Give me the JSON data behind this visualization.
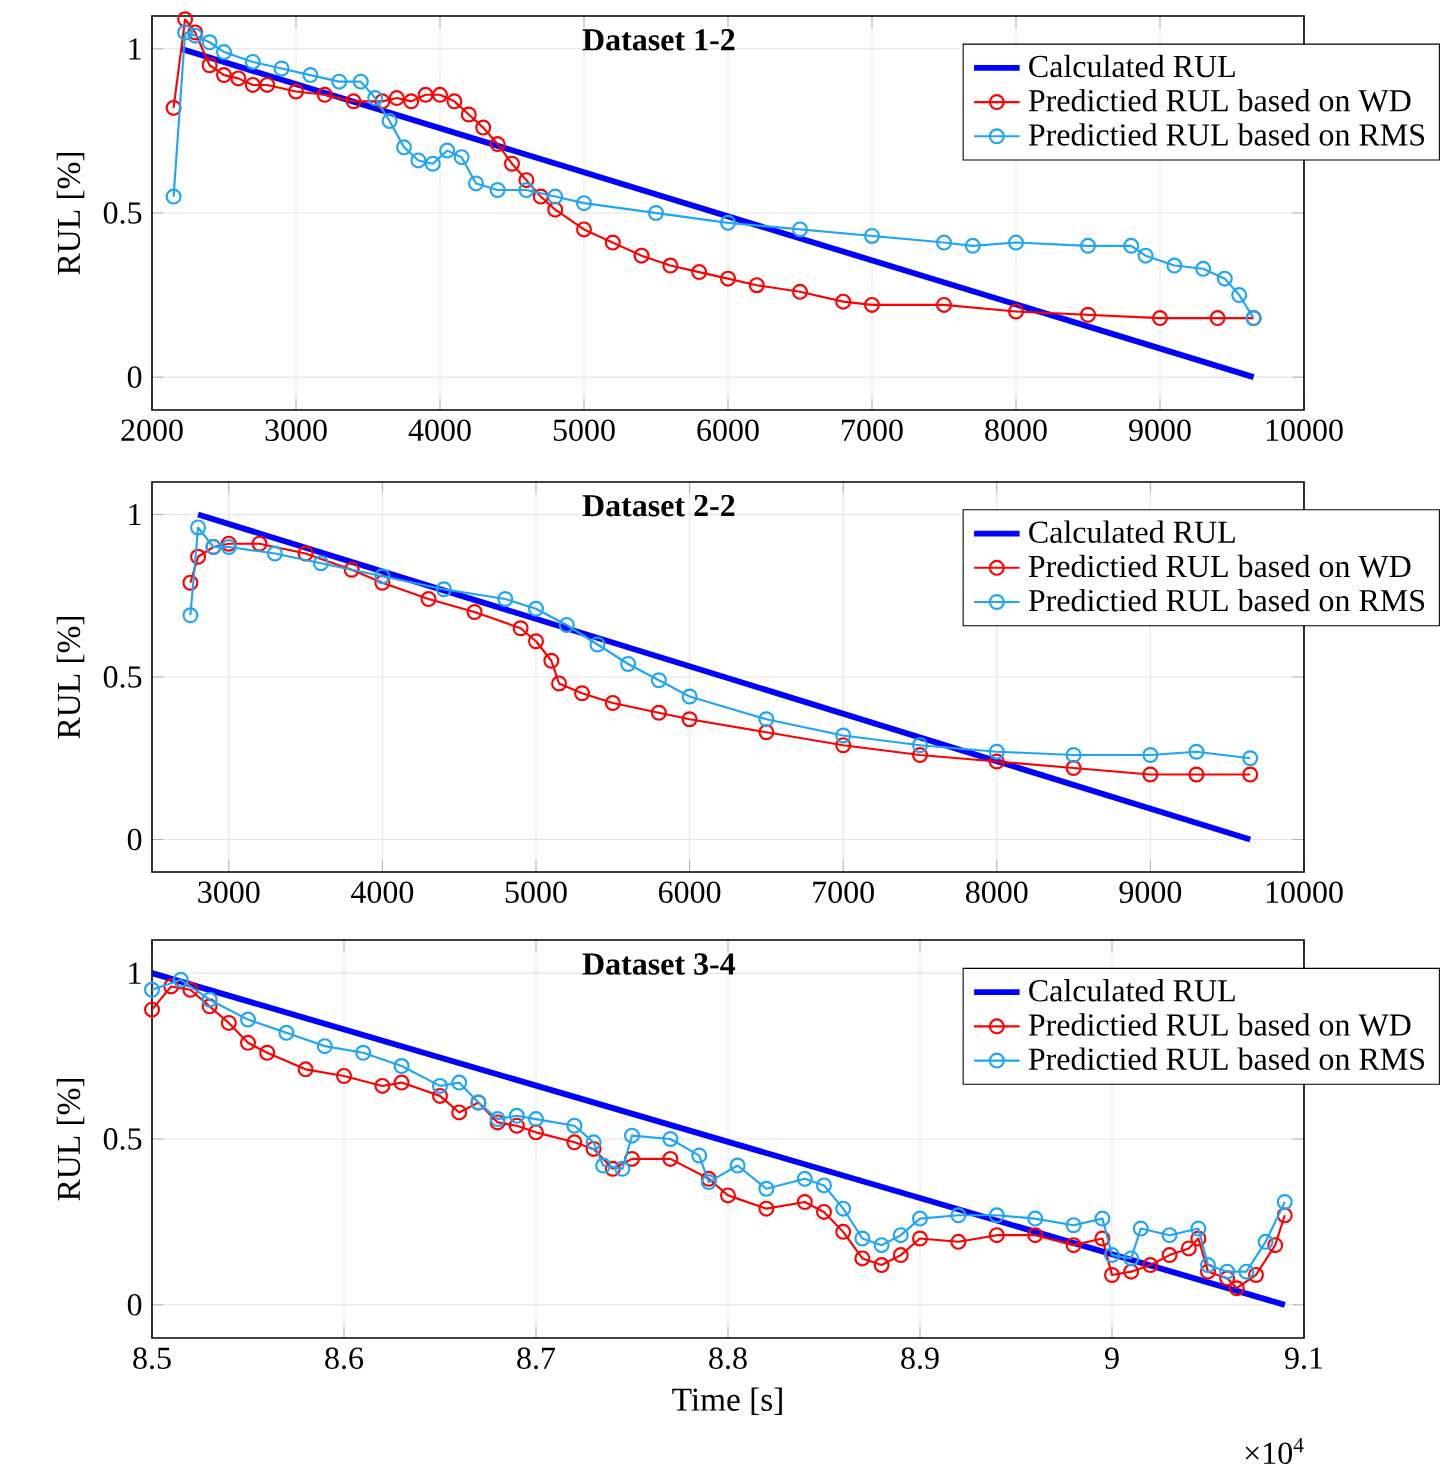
{
  "chart_data": [
    {
      "type": "line",
      "title": "**Dataset 1-2**",
      "ylabel": "RUL [%]",
      "xlim": [
        2000,
        10000
      ],
      "ylim": [
        -0.1,
        1.1
      ],
      "xticks": [
        2000,
        3000,
        4000,
        5000,
        6000,
        7000,
        8000,
        9000,
        10000
      ],
      "yticks": [
        0,
        0.5,
        1
      ],
      "grid": true,
      "legend": "top right",
      "series": [
        {
          "name": "Calculated RUL",
          "color": "#0000ff",
          "marker": "none",
          "x": [
            2200,
            9650
          ],
          "values": [
            1,
            0
          ]
        },
        {
          "name": "Predictied RUL based on WD",
          "color": "#ff0000",
          "marker": "circle",
          "x": [
            2150,
            2230,
            2300,
            2400,
            2500,
            2600,
            2700,
            2800,
            3000,
            3200,
            3400,
            3600,
            3700,
            3800,
            3900,
            4000,
            4100,
            4200,
            4300,
            4400,
            4500,
            4600,
            4700,
            4800,
            5000,
            5200,
            5400,
            5600,
            5800,
            6000,
            6200,
            6500,
            6800,
            7000,
            7500,
            8000,
            8500,
            9000,
            9400,
            9650
          ],
          "values": [
            0.82,
            1.09,
            1.05,
            0.95,
            0.92,
            0.91,
            0.89,
            0.89,
            0.87,
            0.86,
            0.84,
            0.84,
            0.85,
            0.84,
            0.86,
            0.86,
            0.84,
            0.8,
            0.76,
            0.71,
            0.65,
            0.6,
            0.55,
            0.51,
            0.45,
            0.41,
            0.37,
            0.34,
            0.32,
            0.3,
            0.28,
            0.26,
            0.23,
            0.22,
            0.22,
            0.2,
            0.19,
            0.18,
            0.18,
            0.18
          ]
        },
        {
          "name": "Predictied RUL based on RMS",
          "color": "#1ea5f5",
          "marker": "circle",
          "x": [
            2150,
            2230,
            2300,
            2400,
            2500,
            2700,
            2900,
            3100,
            3300,
            3450,
            3550,
            3650,
            3750,
            3850,
            3950,
            4050,
            4150,
            4250,
            4400,
            4600,
            4800,
            5000,
            5500,
            6000,
            6500,
            7000,
            7500,
            7700,
            8000,
            8500,
            8800,
            8900,
            9100,
            9300,
            9450,
            9550,
            9650
          ],
          "values": [
            0.55,
            1.05,
            1.04,
            1.02,
            0.99,
            0.96,
            0.94,
            0.92,
            0.9,
            0.9,
            0.85,
            0.78,
            0.7,
            0.66,
            0.65,
            0.69,
            0.67,
            0.59,
            0.57,
            0.57,
            0.55,
            0.53,
            0.5,
            0.47,
            0.45,
            0.43,
            0.41,
            0.4,
            0.41,
            0.4,
            0.4,
            0.37,
            0.34,
            0.33,
            0.3,
            0.25,
            0.18
          ]
        }
      ]
    },
    {
      "type": "line",
      "title": "**Dataset 2-2**",
      "ylabel": "RUL [%]",
      "xlim": [
        2500,
        10000
      ],
      "ylim": [
        -0.1,
        1.1
      ],
      "xticks": [
        3000,
        4000,
        5000,
        6000,
        7000,
        8000,
        9000,
        10000
      ],
      "yticks": [
        0,
        0.5,
        1
      ],
      "grid": true,
      "legend": "top right",
      "series": [
        {
          "name": "Calculated RUL",
          "color": "#0000ff",
          "marker": "none",
          "x": [
            2800,
            9650
          ],
          "values": [
            1,
            0
          ]
        },
        {
          "name": "Predictied RUL based on WD",
          "color": "#ff0000",
          "marker": "circle",
          "x": [
            2750,
            2800,
            2900,
            3000,
            3200,
            3500,
            3800,
            4000,
            4300,
            4600,
            4900,
            5000,
            5100,
            5150,
            5300,
            5500,
            5800,
            6000,
            6500,
            7000,
            7500,
            8000,
            8500,
            9000,
            9300,
            9650
          ],
          "values": [
            0.79,
            0.87,
            0.9,
            0.91,
            0.91,
            0.88,
            0.83,
            0.79,
            0.74,
            0.7,
            0.65,
            0.61,
            0.55,
            0.48,
            0.45,
            0.42,
            0.39,
            0.37,
            0.33,
            0.29,
            0.26,
            0.24,
            0.22,
            0.2,
            0.2,
            0.2
          ]
        },
        {
          "name": "Predictied RUL based on RMS",
          "color": "#1ea5f5",
          "marker": "circle",
          "x": [
            2750,
            2800,
            2900,
            3000,
            3300,
            3600,
            4000,
            4400,
            4800,
            5000,
            5200,
            5400,
            5600,
            5800,
            6000,
            6500,
            7000,
            7500,
            8000,
            8500,
            9000,
            9300,
            9650
          ],
          "values": [
            0.69,
            0.96,
            0.9,
            0.9,
            0.88,
            0.85,
            0.81,
            0.77,
            0.74,
            0.71,
            0.66,
            0.6,
            0.54,
            0.49,
            0.44,
            0.37,
            0.32,
            0.29,
            0.27,
            0.26,
            0.26,
            0.27,
            0.25
          ]
        }
      ]
    },
    {
      "type": "line",
      "title": "**Dataset 3-4**",
      "xlabel": "Time [s]",
      "ylabel": "RUL [%]",
      "annotations": [
        "×10$^{4}$"
      ],
      "xlim": [
        8.5,
        9.1
      ],
      "ylim": [
        -0.1,
        1.1
      ],
      "xticks": [
        8.5,
        8.6,
        8.7,
        8.8,
        8.9,
        9,
        9.1
      ],
      "yticks": [
        0,
        0.5,
        1
      ],
      "grid": true,
      "legend": "top right",
      "series": [
        {
          "name": "Calculated RUL",
          "color": "#0000ff",
          "marker": "none",
          "x": [
            8.5,
            9.09
          ],
          "values": [
            1,
            0
          ]
        },
        {
          "name": "Predictied RUL based on WD",
          "color": "#ff0000",
          "marker": "circle",
          "x": [
            8.5,
            8.51,
            8.52,
            8.53,
            8.54,
            8.55,
            8.56,
            8.58,
            8.6,
            8.62,
            8.63,
            8.65,
            8.66,
            8.67,
            8.68,
            8.69,
            8.7,
            8.72,
            8.73,
            8.74,
            8.75,
            8.77,
            8.79,
            8.8,
            8.82,
            8.84,
            8.85,
            8.86,
            8.87,
            8.88,
            8.89,
            8.9,
            8.92,
            8.94,
            8.96,
            8.98,
            8.995,
            9,
            9.01,
            9.02,
            9.03,
            9.04,
            9.045,
            9.05,
            9.06,
            9.065,
            9.075,
            9.085,
            9.09
          ],
          "values": [
            0.89,
            0.96,
            0.95,
            0.9,
            0.85,
            0.79,
            0.76,
            0.71,
            0.69,
            0.66,
            0.67,
            0.63,
            0.58,
            0.61,
            0.55,
            0.54,
            0.52,
            0.49,
            0.47,
            0.41,
            0.44,
            0.44,
            0.38,
            0.33,
            0.29,
            0.31,
            0.28,
            0.22,
            0.14,
            0.12,
            0.15,
            0.2,
            0.19,
            0.21,
            0.21,
            0.18,
            0.2,
            0.09,
            0.1,
            0.12,
            0.15,
            0.17,
            0.2,
            0.1,
            0.08,
            0.05,
            0.09,
            0.18,
            0.27
          ]
        },
        {
          "name": "Predictied RUL based on RMS",
          "color": "#1ea5f5",
          "marker": "circle",
          "x": [
            8.5,
            8.515,
            8.53,
            8.55,
            8.57,
            8.59,
            8.61,
            8.63,
            8.65,
            8.66,
            8.67,
            8.68,
            8.69,
            8.7,
            8.72,
            8.73,
            8.735,
            8.745,
            8.75,
            8.77,
            8.785,
            8.79,
            8.805,
            8.82,
            8.84,
            8.85,
            8.86,
            8.87,
            8.88,
            8.89,
            8.9,
            8.92,
            8.94,
            8.96,
            8.98,
            8.995,
            9,
            9.01,
            9.015,
            9.03,
            9.045,
            9.05,
            9.06,
            9.07,
            9.08,
            9.09
          ],
          "values": [
            0.95,
            0.98,
            0.92,
            0.86,
            0.82,
            0.78,
            0.76,
            0.72,
            0.66,
            0.67,
            0.61,
            0.56,
            0.57,
            0.56,
            0.54,
            0.49,
            0.42,
            0.41,
            0.51,
            0.5,
            0.45,
            0.37,
            0.42,
            0.35,
            0.38,
            0.36,
            0.29,
            0.2,
            0.18,
            0.21,
            0.26,
            0.27,
            0.27,
            0.26,
            0.24,
            0.26,
            0.15,
            0.14,
            0.23,
            0.21,
            0.23,
            0.12,
            0.1,
            0.1,
            0.19,
            0.31
          ]
        }
      ]
    }
  ]
}
